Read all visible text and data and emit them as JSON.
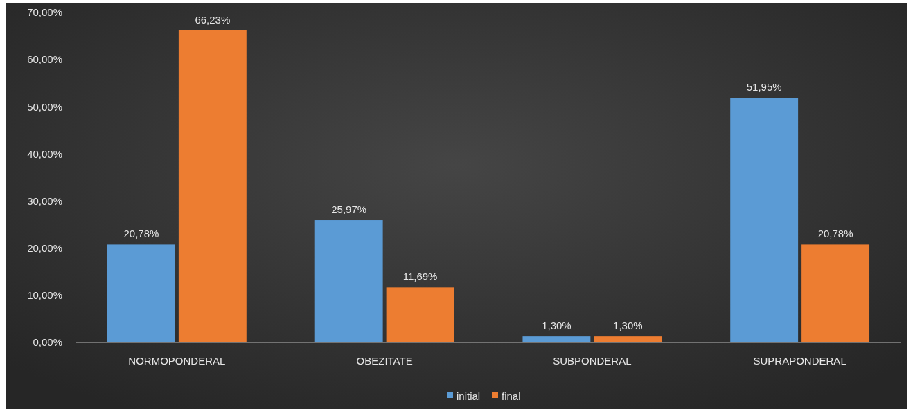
{
  "chart_data": {
    "type": "bar",
    "categories": [
      "NORMOPONDERAL",
      "OBEZITATE",
      "SUBPONDERAL",
      "SUPRAPONDERAL"
    ],
    "series": [
      {
        "name": "initial",
        "color": "#5b9bd5",
        "values": [
          20.78,
          25.97,
          1.3,
          51.95
        ],
        "value_labels": [
          "20,78%",
          "25,97%",
          "1,30%",
          "51,95%"
        ]
      },
      {
        "name": "final",
        "color": "#ed7d31",
        "values": [
          66.23,
          11.69,
          1.3,
          20.78
        ],
        "value_labels": [
          "66,23%",
          "11,69%",
          "1,30%",
          "20,78%"
        ]
      }
    ],
    "ylim": [
      0,
      70
    ],
    "yticks": [
      {
        "value": 0,
        "label": "0,00%"
      },
      {
        "value": 10,
        "label": "10,00%"
      },
      {
        "value": 20,
        "label": "20,00%"
      },
      {
        "value": 30,
        "label": "30,00%"
      },
      {
        "value": 40,
        "label": "40,00%"
      },
      {
        "value": 50,
        "label": "50,00%"
      },
      {
        "value": 60,
        "label": "60,00%"
      },
      {
        "value": 70,
        "label": "70,00%"
      }
    ],
    "grid": false,
    "legend": "bottom"
  }
}
